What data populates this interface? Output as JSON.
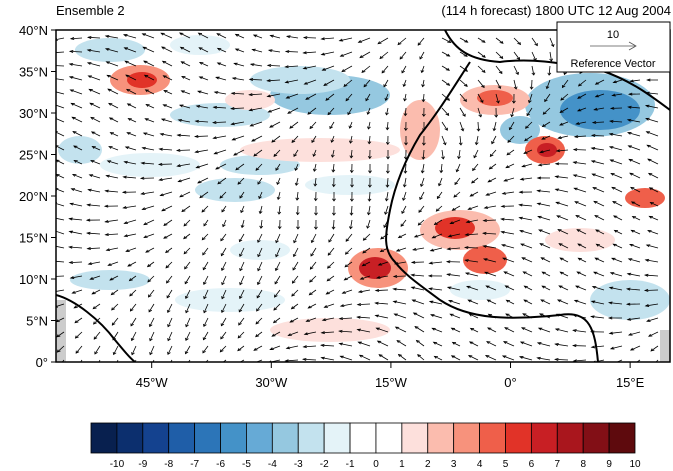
{
  "title_left": "Ensemble 2",
  "title_right": "(114 h forecast) 1800 UTC 12 Aug 2004",
  "map": {
    "lat_range": [
      0,
      40
    ],
    "lon_range": [
      -57,
      20
    ],
    "lat_ticks": [
      {
        "value": 0,
        "label": "0°"
      },
      {
        "value": 5,
        "label": "5°N"
      },
      {
        "value": 10,
        "label": "10°N"
      },
      {
        "value": 15,
        "label": "15°N"
      },
      {
        "value": 20,
        "label": "20°N"
      },
      {
        "value": 25,
        "label": "25°N"
      },
      {
        "value": 30,
        "label": "30°N"
      },
      {
        "value": 35,
        "label": "35°N"
      },
      {
        "value": 40,
        "label": "40°N"
      }
    ],
    "lon_ticks": [
      {
        "value": -45,
        "label": "45°W"
      },
      {
        "value": -30,
        "label": "30°W"
      },
      {
        "value": -15,
        "label": "15°W"
      },
      {
        "value": 0,
        "label": "0°"
      },
      {
        "value": 15,
        "label": "15°E"
      }
    ],
    "reference_vector": {
      "value": "10",
      "label": "Reference Vector"
    },
    "land_color": "#cccccc"
  },
  "colorbar": {
    "labels": [
      "-10",
      "-9",
      "-8",
      "-7",
      "-6",
      "-5",
      "-4",
      "-3",
      "-2",
      "-1",
      "0",
      "1",
      "2",
      "3",
      "4",
      "5",
      "6",
      "7",
      "8",
      "9",
      "10"
    ],
    "colors": [
      "#08204f",
      "#0c2f6e",
      "#14428f",
      "#1f5ea8",
      "#2c75b8",
      "#4492c8",
      "#66aad6",
      "#95c8e0",
      "#c3e2ee",
      "#e4f3f8",
      "#ffffff",
      "#ffffff",
      "#fde0dc",
      "#fbbcae",
      "#f7927c",
      "#ef5f4a",
      "#e13328",
      "#c81f24",
      "#a9161d",
      "#820f16",
      "#5e0a0d"
    ]
  }
}
